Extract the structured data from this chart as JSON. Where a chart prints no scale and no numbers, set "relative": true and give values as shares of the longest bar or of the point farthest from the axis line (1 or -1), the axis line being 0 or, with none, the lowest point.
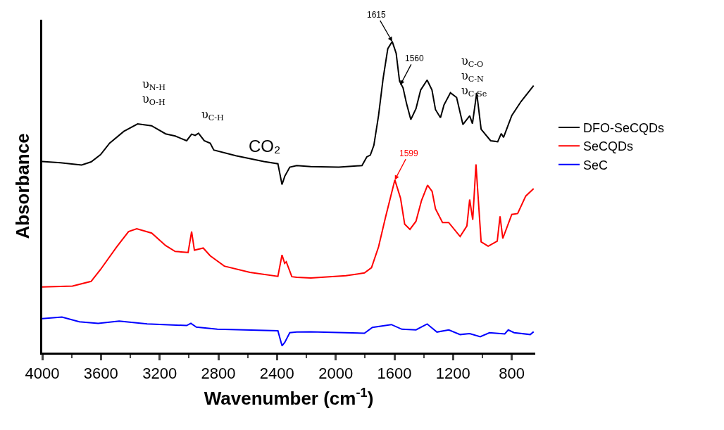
{
  "chart_data": {
    "type": "line",
    "relative": true,
    "xlabel": "Wavenumber (cm$^{-1}$)",
    "ylabel": "Absorbance",
    "xlim": [
      4000,
      640
    ],
    "xticks": [
      4000,
      3600,
      3200,
      2800,
      2400,
      2000,
      1600,
      1200,
      800
    ],
    "legend": "right",
    "marker": "none",
    "line_style": "solid",
    "series": [
      {
        "name": "DFO-SeCQDs",
        "color": "#000000",
        "x": [
          4000,
          3876,
          3732,
          3667,
          3603,
          3541,
          3444,
          3350,
          3255,
          3159,
          3094,
          3016,
          2982,
          2958,
          2935,
          2896,
          2855,
          2831,
          2681,
          2490,
          2394,
          2366,
          2347,
          2313,
          2266,
          2170,
          1979,
          1821,
          1788,
          1764,
          1740,
          1708,
          1677,
          1645,
          1615,
          1588,
          1565,
          1541,
          1517,
          1488,
          1453,
          1421,
          1377,
          1344,
          1320,
          1286,
          1262,
          1218,
          1176,
          1133,
          1087,
          1068,
          1039,
          1009,
          944,
          896,
          872,
          856,
          800,
          737,
          651
        ],
        "values": [
          0.614,
          0.61,
          0.603,
          0.613,
          0.636,
          0.673,
          0.711,
          0.735,
          0.729,
          0.703,
          0.696,
          0.681,
          0.702,
          0.698,
          0.705,
          0.681,
          0.673,
          0.651,
          0.633,
          0.614,
          0.607,
          0.54,
          0.567,
          0.596,
          0.601,
          0.598,
          0.596,
          0.601,
          0.629,
          0.635,
          0.666,
          0.762,
          0.881,
          0.977,
          1.0,
          0.962,
          0.873,
          0.851,
          0.8,
          0.749,
          0.784,
          0.844,
          0.876,
          0.844,
          0.781,
          0.755,
          0.796,
          0.835,
          0.82,
          0.733,
          0.761,
          0.736,
          0.835,
          0.718,
          0.681,
          0.678,
          0.704,
          0.692,
          0.762,
          0.807,
          0.858
        ]
      },
      {
        "name": "SeCQDs",
        "color": "#ff0000",
        "x": [
          4000,
          3794,
          3667,
          3603,
          3492,
          3412,
          3356,
          3254,
          3159,
          3094,
          3006,
          2982,
          2963,
          2903,
          2855,
          2759,
          2585,
          2394,
          2366,
          2348,
          2337,
          2299,
          2266,
          2170,
          1931,
          1804,
          1756,
          1708,
          1660,
          1597,
          1558,
          1530,
          1494,
          1453,
          1415,
          1374,
          1343,
          1320,
          1272,
          1230,
          1152,
          1106,
          1087,
          1066,
          1044,
          1009,
          961,
          899,
          880,
          861,
          800,
          760,
          705,
          651
        ],
        "values": [
          0.211,
          0.214,
          0.229,
          0.267,
          0.34,
          0.389,
          0.398,
          0.384,
          0.344,
          0.325,
          0.322,
          0.389,
          0.329,
          0.336,
          0.311,
          0.278,
          0.258,
          0.245,
          0.314,
          0.287,
          0.292,
          0.244,
          0.242,
          0.24,
          0.247,
          0.256,
          0.273,
          0.34,
          0.436,
          0.555,
          0.496,
          0.413,
          0.396,
          0.422,
          0.489,
          0.538,
          0.518,
          0.462,
          0.418,
          0.418,
          0.373,
          0.407,
          0.492,
          0.427,
          0.605,
          0.356,
          0.342,
          0.358,
          0.438,
          0.367,
          0.444,
          0.447,
          0.503,
          0.527
        ]
      },
      {
        "name": "SeC",
        "color": "#0000ff",
        "x": [
          4000,
          3866,
          3747,
          3619,
          3476,
          3285,
          3016,
          2987,
          2950,
          2807,
          2394,
          2366,
          2347,
          2313,
          2266,
          2170,
          1804,
          1750,
          1621,
          1549,
          1453,
          1377,
          1310,
          1229,
          1152,
          1087,
          1015,
          952,
          848,
          824,
          784,
          674,
          651
        ],
        "values": [
          0.109,
          0.114,
          0.099,
          0.094,
          0.101,
          0.092,
          0.087,
          0.094,
          0.082,
          0.075,
          0.07,
          0.022,
          0.033,
          0.064,
          0.066,
          0.067,
          0.062,
          0.081,
          0.09,
          0.075,
          0.073,
          0.092,
          0.066,
          0.073,
          0.058,
          0.061,
          0.051,
          0.064,
          0.06,
          0.073,
          0.064,
          0.058,
          0.067
        ]
      }
    ],
    "annotations": [
      "υ$_{N-H}$\nυ$_{O-H}$",
      "υ$_{C-H}$",
      "CO₂",
      "υ$_{C-O}$\nυ$_{C-N}$\nυ$_{C-Se}$",
      {
        "text": "1615",
        "x": 1615,
        "y": 1.0
      },
      {
        "text": "1560",
        "x": 1560,
        "y": 0.86
      },
      {
        "text": "1599",
        "x": 1597,
        "y": 0.555
      }
    ]
  }
}
